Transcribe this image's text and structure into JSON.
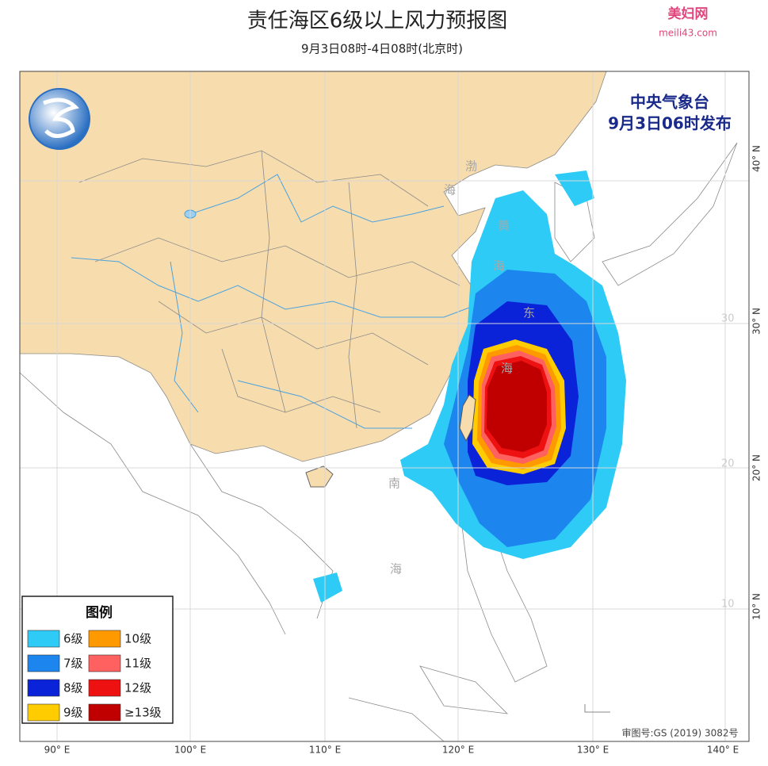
{
  "header": {
    "title": "责任海区6级以上风力预报图",
    "subtitle": "9月3日08时-4日08时(北京时)"
  },
  "watermark": {
    "name": "美妇网",
    "url": "meili43.com"
  },
  "issuer": {
    "agency": "中央气象台",
    "time": "9月3日06时发布"
  },
  "sea_labels": [
    "渤",
    "海",
    "黄",
    "海",
    "东",
    "海",
    "南",
    "海"
  ],
  "grid_labels": [
    "30",
    "20",
    "10"
  ],
  "legend": {
    "title": "图例",
    "items": [
      {
        "label": "6级",
        "color": "#2ecbf6"
      },
      {
        "label": "7级",
        "color": "#1c86ee"
      },
      {
        "label": "8级",
        "color": "#0a22d8"
      },
      {
        "label": "9级",
        "color": "#ffcc00"
      },
      {
        "label": "10级",
        "color": "#ff9900"
      },
      {
        "label": "11级",
        "color": "#ff6060"
      },
      {
        "label": "12级",
        "color": "#ee1111"
      },
      {
        "label": "≥13级",
        "color": "#c00000"
      }
    ]
  },
  "longitude_labels": [
    "90° E",
    "100° E",
    "110° E",
    "120° E",
    "130° E",
    "140° E"
  ],
  "latitude_labels": [
    "40° N",
    "30° N",
    "20° N",
    "10° N"
  ],
  "footer": {
    "approval": "审图号:GS (2019) 3082号"
  }
}
